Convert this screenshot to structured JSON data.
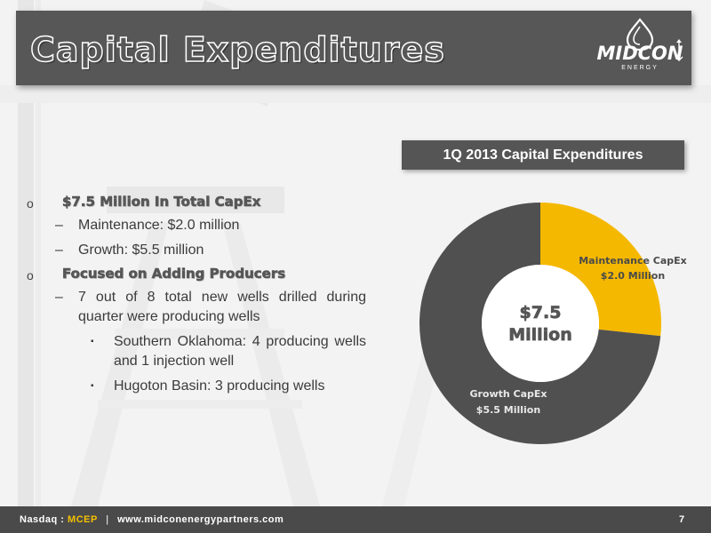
{
  "slide": {
    "title": "Capital Expenditures",
    "logo_text": "MIDCON",
    "logo_subtext": "ENERGY",
    "page_number": "7"
  },
  "bullets": {
    "items": [
      {
        "level": 1,
        "text": "$7.5 Million In Total CapEx"
      },
      {
        "level": 2,
        "text": "Maintenance: $2.0 million"
      },
      {
        "level": 2,
        "text": "Growth: $5.5 million"
      },
      {
        "level": 1,
        "text": "Focused on Adding Producers"
      },
      {
        "level": 2,
        "text": "7 out of 8 total new wells drilled during quarter were producing wells"
      },
      {
        "level": 3,
        "text": "Southern Oklahoma: 4 producing wells and 1 injection well"
      },
      {
        "level": 3,
        "text": "Hugoton Basin: 3 producing wells"
      }
    ],
    "level1_marker": "o",
    "level2_marker": "–",
    "level3_marker": "▪"
  },
  "chart_header": "1Q 2013 Capital Expenditures",
  "footer": {
    "exchange_label": "Nasdaq :",
    "ticker": "MCEP",
    "separator": "|",
    "website": "www.midconenergypartners.com"
  },
  "colors": {
    "maintenance": "#f5b800",
    "growth": "#505050",
    "title_bar": "#575757",
    "footer": "#4a4a4a",
    "ticker": "#f5c000"
  },
  "chart_data": {
    "type": "pie",
    "donut": true,
    "title": "1Q 2013 Capital Expenditures",
    "center_label": [
      "$7.5",
      "Million"
    ],
    "categories": [
      "Maintenance CapEx",
      "Growth CapEx"
    ],
    "values": [
      2.0,
      5.5
    ],
    "slice_labels": [
      [
        "Maintenance CapEx",
        "$2.0 Million"
      ],
      [
        "Growth CapEx",
        "$5.5 Million"
      ]
    ]
  }
}
